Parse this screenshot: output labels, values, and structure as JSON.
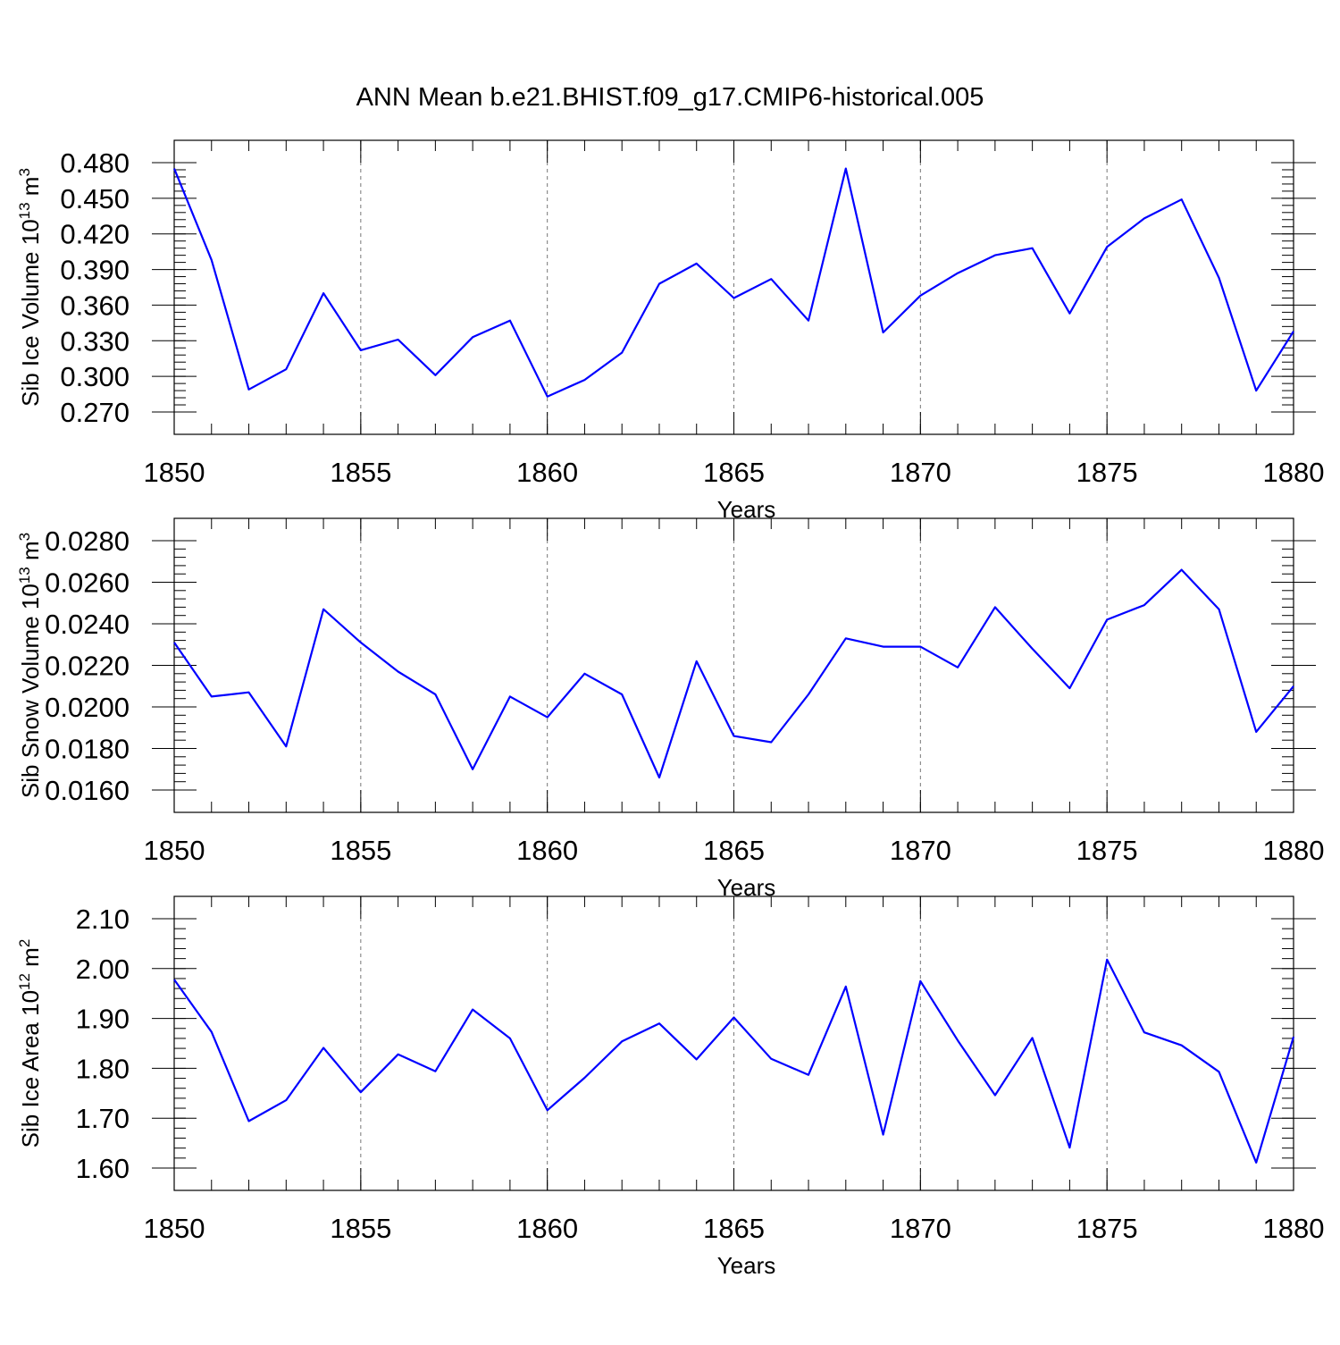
{
  "title": "ANN Mean b.e21.BHIST.f09_g17.CMIP6-historical.005",
  "colors": {
    "series": "#0000ff",
    "grid": "#777777",
    "axis": "#000000"
  },
  "chart_data": [
    {
      "type": "line",
      "ylabel": "Sib Ice Volume 10",
      "ylabel_exp": "13",
      "ylabel_unit": " m",
      "ylabel_unit_exp": "3",
      "xlabel": "Years",
      "xlim": [
        1850,
        1880
      ],
      "ylim": [
        0.27,
        0.48
      ],
      "ytick_values": [
        0.27,
        0.3,
        0.33,
        0.36,
        0.39,
        0.42,
        0.45,
        0.48
      ],
      "ytick_labels": [
        "0.270",
        "0.300",
        "0.330",
        "0.360",
        "0.390",
        "0.420",
        "0.450",
        "0.480"
      ],
      "yminor_step": 0.006,
      "xtick_values": [
        1850,
        1855,
        1860,
        1865,
        1870,
        1875,
        1880
      ],
      "xtick_labels": [
        "1850",
        "1855",
        "1860",
        "1865",
        "1870",
        "1875",
        "1880"
      ],
      "x": [
        1850,
        1851,
        1852,
        1853,
        1854,
        1855,
        1856,
        1857,
        1858,
        1859,
        1860,
        1861,
        1862,
        1863,
        1864,
        1865,
        1866,
        1867,
        1868,
        1869,
        1870,
        1871,
        1872,
        1873,
        1874,
        1875,
        1876,
        1877,
        1878,
        1879,
        1880
      ],
      "values": [
        0.475,
        0.398,
        0.289,
        0.306,
        0.37,
        0.322,
        0.331,
        0.301,
        0.333,
        0.347,
        0.283,
        0.297,
        0.32,
        0.378,
        0.395,
        0.366,
        0.382,
        0.347,
        0.475,
        0.337,
        0.368,
        0.387,
        0.402,
        0.408,
        0.353,
        0.409,
        0.433,
        0.449,
        0.383,
        0.288,
        0.338
      ],
      "grid": "vertical dashed at major x ticks"
    },
    {
      "type": "line",
      "ylabel": "Sib Snow Volume 10",
      "ylabel_exp": "13",
      "ylabel_unit": " m",
      "ylabel_unit_exp": "3",
      "xlabel": "Years",
      "xlim": [
        1850,
        1880
      ],
      "ylim": [
        0.016,
        0.028
      ],
      "ytick_values": [
        0.016,
        0.018,
        0.02,
        0.022,
        0.024,
        0.026,
        0.028
      ],
      "ytick_labels": [
        "0.0160",
        "0.0180",
        "0.0200",
        "0.0220",
        "0.0240",
        "0.0260",
        "0.0280"
      ],
      "yminor_step": 0.0004,
      "xtick_values": [
        1850,
        1855,
        1860,
        1865,
        1870,
        1875,
        1880
      ],
      "xtick_labels": [
        "1850",
        "1855",
        "1860",
        "1865",
        "1870",
        "1875",
        "1880"
      ],
      "x": [
        1850,
        1851,
        1852,
        1853,
        1854,
        1855,
        1856,
        1857,
        1858,
        1859,
        1860,
        1861,
        1862,
        1863,
        1864,
        1865,
        1866,
        1867,
        1868,
        1869,
        1870,
        1871,
        1872,
        1873,
        1874,
        1875,
        1876,
        1877,
        1878,
        1879,
        1880
      ],
      "values": [
        0.0231,
        0.0205,
        0.0207,
        0.0181,
        0.0247,
        0.0231,
        0.0217,
        0.0206,
        0.017,
        0.0205,
        0.0195,
        0.0216,
        0.0206,
        0.0166,
        0.0222,
        0.0186,
        0.0183,
        0.0206,
        0.0233,
        0.0229,
        0.0229,
        0.0219,
        0.0248,
        0.0228,
        0.0209,
        0.0242,
        0.0249,
        0.0266,
        0.0247,
        0.0188,
        0.021
      ],
      "grid": "vertical dashed at major x ticks"
    },
    {
      "type": "line",
      "ylabel": "Sib Ice Area 10",
      "ylabel_exp": "12",
      "ylabel_unit": " m",
      "ylabel_unit_exp": "2",
      "xlabel": "Years",
      "xlim": [
        1850,
        1880
      ],
      "ylim": [
        1.6,
        2.1
      ],
      "ytick_values": [
        1.6,
        1.7,
        1.8,
        1.9,
        2.0,
        2.1
      ],
      "ytick_labels": [
        "1.60",
        "1.70",
        "1.80",
        "1.90",
        "2.00",
        "2.10"
      ],
      "yminor_step": 0.02,
      "xtick_values": [
        1850,
        1855,
        1860,
        1865,
        1870,
        1875,
        1880
      ],
      "xtick_labels": [
        "1850",
        "1855",
        "1860",
        "1865",
        "1870",
        "1875",
        "1880"
      ],
      "x": [
        1850,
        1851,
        1852,
        1853,
        1854,
        1855,
        1856,
        1857,
        1858,
        1859,
        1860,
        1861,
        1862,
        1863,
        1864,
        1865,
        1866,
        1867,
        1868,
        1869,
        1870,
        1871,
        1872,
        1873,
        1874,
        1875,
        1876,
        1877,
        1878,
        1879,
        1880
      ],
      "values": [
        1.978,
        1.873,
        1.694,
        1.736,
        1.841,
        1.752,
        1.828,
        1.794,
        1.918,
        1.86,
        1.716,
        1.781,
        1.854,
        1.89,
        1.818,
        1.902,
        1.819,
        1.787,
        1.964,
        1.667,
        1.975,
        1.856,
        1.746,
        1.861,
        1.641,
        2.018,
        1.872,
        1.846,
        1.793,
        1.611,
        1.863
      ],
      "grid": "vertical dashed at major x ticks"
    }
  ]
}
